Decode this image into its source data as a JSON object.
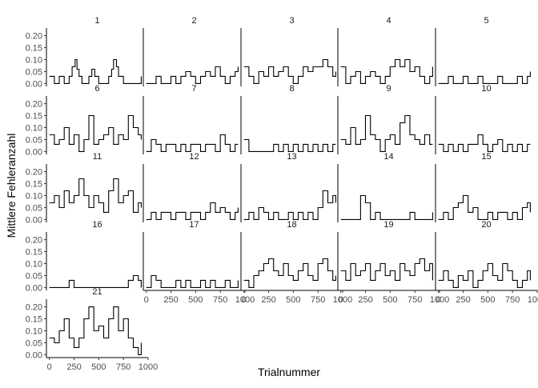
{
  "chart_data": {
    "type": "line",
    "layout": "facet-grid",
    "columns": 5,
    "xlabel": "Trialnummer",
    "ylabel": "Mittlere Fehleranzahl",
    "xlim": [
      -30,
      1000
    ],
    "ylim": [
      -0.012,
      0.232
    ],
    "x_ticks": [
      0,
      250,
      500,
      750,
      1000
    ],
    "y_ticks": [
      0.0,
      0.05,
      0.1,
      0.15,
      0.2
    ],
    "y_tick_labels": [
      "0.00",
      "0.05",
      "0.10",
      "0.15",
      "0.20"
    ],
    "grid": false,
    "line_color": "#000000",
    "smoothing": "step-like moving average of error rate across trials",
    "panels": [
      {
        "label": "1",
        "x": [
          0,
          50,
          100,
          150,
          200,
          230,
          260,
          280,
          300,
          330,
          360,
          400,
          430,
          460,
          500,
          530,
          560,
          600,
          630,
          650,
          680,
          700,
          750,
          800,
          850,
          900,
          930
        ],
        "y": [
          0.03,
          0.0,
          0.03,
          0.0,
          0.03,
          0.07,
          0.1,
          0.06,
          0.03,
          0.0,
          0.0,
          0.03,
          0.06,
          0.03,
          0.0,
          0.0,
          0.0,
          0.03,
          0.06,
          0.1,
          0.07,
          0.03,
          0.0,
          0.0,
          0.0,
          0.0,
          0.03
        ]
      },
      {
        "label": "2",
        "x": [
          0,
          50,
          100,
          150,
          200,
          250,
          300,
          350,
          400,
          450,
          500,
          550,
          600,
          650,
          700,
          750,
          800,
          850,
          900,
          930
        ],
        "y": [
          0.0,
          0.0,
          0.03,
          0.0,
          0.0,
          0.03,
          0.0,
          0.03,
          0.05,
          0.03,
          0.0,
          0.03,
          0.05,
          0.03,
          0.07,
          0.03,
          0.0,
          0.03,
          0.05,
          0.07
        ]
      },
      {
        "label": "3",
        "x": [
          0,
          50,
          100,
          150,
          200,
          250,
          300,
          350,
          400,
          450,
          500,
          550,
          600,
          650,
          700,
          750,
          800,
          850,
          900,
          930
        ],
        "y": [
          0.07,
          0.03,
          0.0,
          0.05,
          0.03,
          0.07,
          0.03,
          0.05,
          0.07,
          0.03,
          0.0,
          0.03,
          0.07,
          0.05,
          0.07,
          0.07,
          0.1,
          0.07,
          0.03,
          0.05
        ]
      },
      {
        "label": "4",
        "x": [
          0,
          50,
          100,
          150,
          200,
          250,
          300,
          350,
          400,
          450,
          500,
          550,
          600,
          650,
          700,
          750,
          800,
          850,
          900,
          930
        ],
        "y": [
          0.07,
          0.0,
          0.03,
          0.05,
          0.0,
          0.03,
          0.05,
          0.03,
          0.0,
          0.03,
          0.07,
          0.1,
          0.07,
          0.1,
          0.05,
          0.07,
          0.03,
          0.0,
          0.03,
          0.07
        ]
      },
      {
        "label": "5",
        "x": [
          0,
          50,
          100,
          150,
          200,
          250,
          300,
          350,
          400,
          450,
          500,
          550,
          600,
          650,
          700,
          750,
          800,
          850,
          900,
          930
        ],
        "y": [
          0.0,
          0.0,
          0.03,
          0.0,
          0.0,
          0.03,
          0.0,
          0.0,
          0.03,
          0.0,
          0.0,
          0.0,
          0.03,
          0.0,
          0.0,
          0.0,
          0.03,
          0.0,
          0.03,
          0.05
        ]
      },
      {
        "label": "6",
        "x": [
          0,
          50,
          100,
          150,
          200,
          250,
          300,
          350,
          400,
          450,
          500,
          550,
          600,
          650,
          700,
          750,
          800,
          850,
          900,
          930
        ],
        "y": [
          0.07,
          0.03,
          0.05,
          0.1,
          0.03,
          0.07,
          0.0,
          0.05,
          0.15,
          0.03,
          0.05,
          0.07,
          0.1,
          0.03,
          0.07,
          0.05,
          0.15,
          0.1,
          0.07,
          0.05
        ]
      },
      {
        "label": "7",
        "x": [
          0,
          50,
          100,
          150,
          200,
          250,
          300,
          350,
          400,
          450,
          500,
          550,
          600,
          650,
          700,
          750,
          800,
          850,
          900,
          930
        ],
        "y": [
          0.0,
          0.05,
          0.03,
          0.0,
          0.03,
          0.03,
          0.0,
          0.03,
          0.0,
          0.03,
          0.03,
          0.0,
          0.03,
          0.03,
          0.0,
          0.07,
          0.03,
          0.0,
          0.03,
          0.03
        ]
      },
      {
        "label": "8",
        "x": [
          0,
          50,
          100,
          150,
          200,
          250,
          300,
          350,
          400,
          450,
          500,
          550,
          600,
          650,
          700,
          750,
          800,
          850,
          900,
          930
        ],
        "y": [
          0.05,
          0.0,
          0.0,
          0.0,
          0.0,
          0.0,
          0.03,
          0.0,
          0.03,
          0.0,
          0.03,
          0.0,
          0.03,
          0.0,
          0.03,
          0.0,
          0.03,
          0.0,
          0.03,
          0.03
        ]
      },
      {
        "label": "9",
        "x": [
          0,
          50,
          100,
          150,
          200,
          250,
          300,
          350,
          400,
          450,
          500,
          550,
          600,
          650,
          700,
          750,
          800,
          850,
          900,
          930
        ],
        "y": [
          0.05,
          0.03,
          0.1,
          0.03,
          0.05,
          0.15,
          0.07,
          0.05,
          0.0,
          0.05,
          0.07,
          0.03,
          0.12,
          0.15,
          0.07,
          0.05,
          0.03,
          0.07,
          0.03,
          0.03
        ]
      },
      {
        "label": "10",
        "x": [
          0,
          50,
          100,
          150,
          200,
          250,
          300,
          350,
          400,
          450,
          500,
          550,
          600,
          650,
          700,
          750,
          800,
          850,
          900,
          930
        ],
        "y": [
          0.03,
          0.0,
          0.03,
          0.0,
          0.03,
          0.0,
          0.03,
          0.03,
          0.07,
          0.03,
          0.0,
          0.03,
          0.05,
          0.0,
          0.03,
          0.0,
          0.03,
          0.0,
          0.03,
          0.03
        ]
      },
      {
        "label": "11",
        "x": [
          0,
          50,
          100,
          150,
          200,
          250,
          300,
          350,
          400,
          450,
          500,
          550,
          600,
          650,
          700,
          750,
          800,
          850,
          900,
          930
        ],
        "y": [
          0.07,
          0.1,
          0.05,
          0.12,
          0.07,
          0.1,
          0.17,
          0.1,
          0.05,
          0.1,
          0.07,
          0.03,
          0.12,
          0.17,
          0.07,
          0.1,
          0.12,
          0.03,
          0.07,
          0.05
        ]
      },
      {
        "label": "12",
        "x": [
          0,
          50,
          100,
          150,
          200,
          250,
          300,
          350,
          400,
          450,
          500,
          550,
          600,
          650,
          700,
          750,
          800,
          850,
          900,
          930
        ],
        "y": [
          0.0,
          0.03,
          0.0,
          0.03,
          0.03,
          0.0,
          0.03,
          0.03,
          0.0,
          0.03,
          0.03,
          0.0,
          0.03,
          0.07,
          0.03,
          0.05,
          0.03,
          0.0,
          0.03,
          0.05
        ]
      },
      {
        "label": "13",
        "x": [
          0,
          50,
          100,
          150,
          200,
          250,
          300,
          350,
          400,
          450,
          500,
          550,
          600,
          650,
          700,
          750,
          800,
          850,
          900,
          930
        ],
        "y": [
          0.0,
          0.03,
          0.0,
          0.05,
          0.03,
          0.0,
          0.03,
          0.0,
          0.0,
          0.03,
          0.0,
          0.03,
          0.0,
          0.03,
          0.0,
          0.05,
          0.12,
          0.07,
          0.1,
          0.07
        ]
      },
      {
        "label": "14",
        "x": [
          0,
          50,
          100,
          150,
          200,
          250,
          300,
          350,
          400,
          450,
          500,
          550,
          600,
          650,
          700,
          750,
          800,
          850,
          900,
          930
        ],
        "y": [
          0.0,
          0.0,
          0.0,
          0.0,
          0.1,
          0.07,
          0.0,
          0.03,
          0.0,
          0.0,
          0.0,
          0.0,
          0.0,
          0.0,
          0.03,
          0.0,
          0.0,
          0.0,
          0.0,
          0.03
        ]
      },
      {
        "label": "15",
        "x": [
          0,
          50,
          100,
          150,
          200,
          250,
          300,
          350,
          400,
          450,
          500,
          550,
          600,
          650,
          700,
          750,
          800,
          850,
          900,
          930
        ],
        "y": [
          0.0,
          0.03,
          0.0,
          0.05,
          0.07,
          0.1,
          0.03,
          0.05,
          0.0,
          0.0,
          0.03,
          0.0,
          0.03,
          0.03,
          0.0,
          0.03,
          0.0,
          0.05,
          0.07,
          0.03
        ]
      },
      {
        "label": "16",
        "x": [
          0,
          50,
          100,
          150,
          200,
          250,
          300,
          350,
          400,
          450,
          500,
          550,
          600,
          650,
          700,
          750,
          800,
          850,
          900,
          930
        ],
        "y": [
          0.0,
          0.0,
          0.0,
          0.0,
          0.03,
          0.0,
          0.0,
          0.0,
          0.0,
          0.0,
          0.0,
          0.0,
          0.0,
          0.0,
          0.0,
          0.0,
          0.03,
          0.05,
          0.03,
          0.0
        ]
      },
      {
        "label": "17",
        "x": [
          0,
          50,
          100,
          150,
          200,
          250,
          300,
          350,
          400,
          450,
          500,
          550,
          600,
          650,
          700,
          750,
          800,
          850,
          900,
          930
        ],
        "y": [
          0.0,
          0.05,
          0.03,
          0.0,
          0.0,
          0.0,
          0.03,
          0.0,
          0.03,
          0.0,
          0.0,
          0.03,
          0.0,
          0.03,
          0.0,
          0.0,
          0.03,
          0.0,
          0.0,
          0.03
        ]
      },
      {
        "label": "18",
        "x": [
          0,
          50,
          100,
          150,
          200,
          250,
          300,
          350,
          400,
          450,
          500,
          550,
          600,
          650,
          700,
          750,
          800,
          850,
          900,
          930
        ],
        "y": [
          0.03,
          0.0,
          0.05,
          0.07,
          0.1,
          0.12,
          0.07,
          0.05,
          0.1,
          0.05,
          0.03,
          0.07,
          0.1,
          0.05,
          0.03,
          0.1,
          0.12,
          0.07,
          0.03,
          0.05
        ]
      },
      {
        "label": "19",
        "x": [
          0,
          50,
          100,
          150,
          200,
          250,
          300,
          350,
          400,
          450,
          500,
          550,
          600,
          650,
          700,
          750,
          800,
          850,
          900,
          930
        ],
        "y": [
          0.07,
          0.03,
          0.1,
          0.05,
          0.07,
          0.1,
          0.03,
          0.07,
          0.1,
          0.05,
          0.07,
          0.03,
          0.1,
          0.07,
          0.05,
          0.1,
          0.12,
          0.07,
          0.1,
          0.03
        ]
      },
      {
        "label": "20",
        "x": [
          0,
          50,
          100,
          150,
          200,
          250,
          300,
          350,
          400,
          450,
          500,
          550,
          600,
          650,
          700,
          750,
          800,
          850,
          900,
          930
        ],
        "y": [
          0.03,
          0.07,
          0.03,
          0.0,
          0.05,
          0.03,
          0.07,
          0.0,
          0.03,
          0.07,
          0.1,
          0.05,
          0.03,
          0.1,
          0.07,
          0.03,
          0.0,
          0.03,
          0.07,
          0.03
        ]
      },
      {
        "label": "21",
        "x": [
          0,
          50,
          100,
          150,
          200,
          250,
          300,
          350,
          400,
          450,
          500,
          550,
          600,
          650,
          700,
          750,
          800,
          850,
          900,
          930
        ],
        "y": [
          0.07,
          0.05,
          0.1,
          0.15,
          0.07,
          0.03,
          0.07,
          0.15,
          0.2,
          0.1,
          0.12,
          0.07,
          0.15,
          0.2,
          0.1,
          0.15,
          0.07,
          0.03,
          0.0,
          0.05
        ]
      }
    ]
  }
}
